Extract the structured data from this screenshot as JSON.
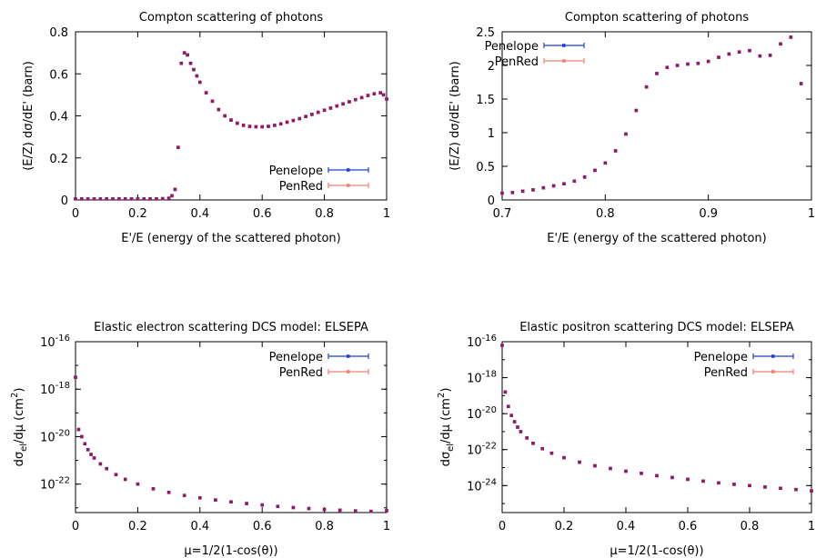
{
  "colors": {
    "penelope": "#1f3fd6",
    "penred": "#f08070",
    "overlap": "#8b1a6b",
    "frame": "#000000"
  },
  "chart_data": [
    {
      "type": "scatter",
      "title": "Compton scattering of photons",
      "xlabel": "E'/E (energy of the scattered photon)",
      "ylabel": "(E/Z) dσ/dE' (barn)",
      "xlim": [
        0,
        1
      ],
      "ylim": [
        0,
        0.8
      ],
      "yscale": "linear",
      "xticks": [
        "0",
        "0.2",
        "0.4",
        "0.6",
        "0.8",
        "1"
      ],
      "yticks": [
        "0",
        "0.2",
        "0.4",
        "0.6",
        "0.8"
      ],
      "legend_position": "bottom-right",
      "series": [
        {
          "name": "Penelope",
          "x": [
            0.0,
            0.02,
            0.04,
            0.06,
            0.08,
            0.1,
            0.12,
            0.14,
            0.16,
            0.18,
            0.2,
            0.22,
            0.24,
            0.26,
            0.28,
            0.3,
            0.31,
            0.32,
            0.33,
            0.34,
            0.35,
            0.36,
            0.37,
            0.38,
            0.39,
            0.4,
            0.42,
            0.44,
            0.46,
            0.48,
            0.5,
            0.52,
            0.54,
            0.56,
            0.58,
            0.6,
            0.62,
            0.64,
            0.66,
            0.68,
            0.7,
            0.72,
            0.74,
            0.76,
            0.78,
            0.8,
            0.82,
            0.84,
            0.86,
            0.88,
            0.9,
            0.92,
            0.94,
            0.96,
            0.98,
            0.99,
            1.0
          ],
          "y": [
            0.005,
            0.005,
            0.005,
            0.005,
            0.005,
            0.005,
            0.005,
            0.005,
            0.005,
            0.005,
            0.005,
            0.005,
            0.005,
            0.005,
            0.006,
            0.008,
            0.02,
            0.05,
            0.25,
            0.65,
            0.7,
            0.69,
            0.65,
            0.62,
            0.59,
            0.56,
            0.51,
            0.47,
            0.43,
            0.4,
            0.38,
            0.365,
            0.355,
            0.35,
            0.348,
            0.348,
            0.35,
            0.355,
            0.362,
            0.37,
            0.378,
            0.387,
            0.397,
            0.407,
            0.417,
            0.427,
            0.437,
            0.447,
            0.457,
            0.467,
            0.477,
            0.487,
            0.497,
            0.505,
            0.51,
            0.5,
            0.48
          ]
        },
        {
          "name": "PenRed",
          "x": [
            0.0,
            0.02,
            0.04,
            0.06,
            0.08,
            0.1,
            0.12,
            0.14,
            0.16,
            0.18,
            0.2,
            0.22,
            0.24,
            0.26,
            0.28,
            0.3,
            0.31,
            0.32,
            0.33,
            0.34,
            0.35,
            0.36,
            0.37,
            0.38,
            0.39,
            0.4,
            0.42,
            0.44,
            0.46,
            0.48,
            0.5,
            0.52,
            0.54,
            0.56,
            0.58,
            0.6,
            0.62,
            0.64,
            0.66,
            0.68,
            0.7,
            0.72,
            0.74,
            0.76,
            0.78,
            0.8,
            0.82,
            0.84,
            0.86,
            0.88,
            0.9,
            0.92,
            0.94,
            0.96,
            0.98,
            0.99,
            1.0
          ],
          "y": [
            0.005,
            0.005,
            0.005,
            0.005,
            0.005,
            0.005,
            0.005,
            0.005,
            0.005,
            0.005,
            0.005,
            0.005,
            0.005,
            0.005,
            0.006,
            0.008,
            0.02,
            0.05,
            0.25,
            0.65,
            0.7,
            0.69,
            0.65,
            0.62,
            0.59,
            0.56,
            0.51,
            0.47,
            0.43,
            0.4,
            0.38,
            0.365,
            0.355,
            0.35,
            0.348,
            0.348,
            0.35,
            0.355,
            0.362,
            0.37,
            0.378,
            0.387,
            0.397,
            0.407,
            0.417,
            0.427,
            0.437,
            0.447,
            0.457,
            0.467,
            0.477,
            0.487,
            0.497,
            0.505,
            0.51,
            0.5,
            0.48
          ]
        }
      ]
    },
    {
      "type": "scatter",
      "title": "Compton scattering of photons",
      "xlabel": "E'/E (energy of the scattered photon)",
      "ylabel": "(E/Z) dσ/dE' (barn)",
      "xlim": [
        0.7,
        1
      ],
      "ylim": [
        0,
        2.5
      ],
      "yscale": "linear",
      "xticks": [
        "0.7",
        "0.8",
        "0.9",
        "1"
      ],
      "yticks": [
        "0",
        "0.5",
        "1",
        "1.5",
        "2",
        "2.5"
      ],
      "legend_position": "top-left",
      "series": [
        {
          "name": "Penelope",
          "x": [
            0.7,
            0.71,
            0.72,
            0.73,
            0.74,
            0.75,
            0.76,
            0.77,
            0.78,
            0.79,
            0.8,
            0.81,
            0.82,
            0.83,
            0.84,
            0.85,
            0.86,
            0.87,
            0.88,
            0.89,
            0.9,
            0.91,
            0.92,
            0.93,
            0.94,
            0.95,
            0.96,
            0.97,
            0.98,
            0.99
          ],
          "y": [
            0.1,
            0.11,
            0.13,
            0.15,
            0.18,
            0.21,
            0.24,
            0.28,
            0.34,
            0.44,
            0.55,
            0.73,
            0.98,
            1.33,
            1.68,
            1.88,
            1.97,
            2.0,
            2.02,
            2.03,
            2.06,
            2.12,
            2.17,
            2.2,
            2.22,
            2.14,
            2.15,
            2.32,
            2.42,
            1.73
          ]
        },
        {
          "name": "PenRed",
          "x": [
            0.7,
            0.71,
            0.72,
            0.73,
            0.74,
            0.75,
            0.76,
            0.77,
            0.78,
            0.79,
            0.8,
            0.81,
            0.82,
            0.83,
            0.84,
            0.85,
            0.86,
            0.87,
            0.88,
            0.89,
            0.9,
            0.91,
            0.92,
            0.93,
            0.94,
            0.95,
            0.96,
            0.97,
            0.98,
            0.99
          ],
          "y": [
            0.1,
            0.11,
            0.13,
            0.15,
            0.18,
            0.21,
            0.24,
            0.28,
            0.34,
            0.44,
            0.55,
            0.73,
            0.98,
            1.33,
            1.68,
            1.88,
            1.97,
            2.0,
            2.02,
            2.03,
            2.06,
            2.12,
            2.17,
            2.2,
            2.22,
            2.14,
            2.15,
            2.32,
            2.42,
            1.73
          ]
        }
      ]
    },
    {
      "type": "scatter",
      "title": "Elastic electron scattering DCS model: ELSEPA",
      "xlabel": "μ=1/2(1-cos(θ))",
      "ylabel": "dσel/dμ (cm2)",
      "xlim": [
        0,
        1
      ],
      "ylim_log10": [
        -23.2,
        -16
      ],
      "yscale": "log",
      "xticks": [
        "0",
        "0.2",
        "0.4",
        "0.6",
        "0.8",
        "1"
      ],
      "yticks_exponents": [
        "-16",
        "-18",
        "-20",
        "-22"
      ],
      "legend_position": "top-right",
      "series": [
        {
          "name": "Penelope",
          "x": [
            0.0,
            0.01,
            0.02,
            0.03,
            0.04,
            0.05,
            0.06,
            0.08,
            0.1,
            0.13,
            0.16,
            0.2,
            0.25,
            0.3,
            0.35,
            0.4,
            0.45,
            0.5,
            0.55,
            0.6,
            0.65,
            0.7,
            0.75,
            0.8,
            0.85,
            0.9,
            0.95,
            1.0
          ],
          "log10_y": [
            -17.5,
            -19.7,
            -20.0,
            -20.3,
            -20.55,
            -20.75,
            -20.9,
            -21.15,
            -21.35,
            -21.6,
            -21.8,
            -22.0,
            -22.2,
            -22.35,
            -22.48,
            -22.58,
            -22.67,
            -22.75,
            -22.82,
            -22.88,
            -22.94,
            -22.99,
            -23.03,
            -23.07,
            -23.1,
            -23.13,
            -23.15,
            -23.12
          ]
        },
        {
          "name": "PenRed",
          "x": [
            0.0,
            0.01,
            0.02,
            0.03,
            0.04,
            0.05,
            0.06,
            0.08,
            0.1,
            0.13,
            0.16,
            0.2,
            0.25,
            0.3,
            0.35,
            0.4,
            0.45,
            0.5,
            0.55,
            0.6,
            0.65,
            0.7,
            0.75,
            0.8,
            0.85,
            0.9,
            0.95,
            1.0
          ],
          "log10_y": [
            -17.5,
            -19.7,
            -20.0,
            -20.3,
            -20.55,
            -20.75,
            -20.9,
            -21.15,
            -21.35,
            -21.6,
            -21.8,
            -22.0,
            -22.2,
            -22.35,
            -22.48,
            -22.58,
            -22.67,
            -22.75,
            -22.82,
            -22.88,
            -22.94,
            -22.99,
            -23.03,
            -23.07,
            -23.1,
            -23.13,
            -23.15,
            -23.12
          ]
        }
      ]
    },
    {
      "type": "scatter",
      "title": "Elastic positron scattering DCS model: ELSEPA",
      "xlabel": "μ=1/2(1-cos(θ))",
      "ylabel": "dσel/dμ (cm2)",
      "xlim": [
        0,
        1
      ],
      "ylim_log10": [
        -25.5,
        -16
      ],
      "yscale": "log",
      "xticks": [
        "0",
        "0.2",
        "0.4",
        "0.6",
        "0.8",
        "1"
      ],
      "yticks_exponents": [
        "-16",
        "-18",
        "-20",
        "-22",
        "-24"
      ],
      "legend_position": "top-right",
      "series": [
        {
          "name": "Penelope",
          "x": [
            0.0,
            0.01,
            0.02,
            0.03,
            0.04,
            0.05,
            0.06,
            0.08,
            0.1,
            0.13,
            0.16,
            0.2,
            0.25,
            0.3,
            0.35,
            0.4,
            0.45,
            0.5,
            0.55,
            0.6,
            0.65,
            0.7,
            0.75,
            0.8,
            0.85,
            0.9,
            0.95,
            1.0
          ],
          "log10_y": [
            -16.2,
            -18.8,
            -19.6,
            -20.1,
            -20.45,
            -20.75,
            -21.0,
            -21.35,
            -21.65,
            -21.95,
            -22.2,
            -22.45,
            -22.7,
            -22.9,
            -23.05,
            -23.2,
            -23.32,
            -23.45,
            -23.55,
            -23.65,
            -23.75,
            -23.85,
            -23.93,
            -24.0,
            -24.08,
            -24.15,
            -24.22,
            -24.3
          ]
        },
        {
          "name": "PenRed",
          "x": [
            0.0,
            0.01,
            0.02,
            0.03,
            0.04,
            0.05,
            0.06,
            0.08,
            0.1,
            0.13,
            0.16,
            0.2,
            0.25,
            0.3,
            0.35,
            0.4,
            0.45,
            0.5,
            0.55,
            0.6,
            0.65,
            0.7,
            0.75,
            0.8,
            0.85,
            0.9,
            0.95,
            1.0
          ],
          "log10_y": [
            -16.2,
            -18.8,
            -19.6,
            -20.1,
            -20.45,
            -20.75,
            -21.0,
            -21.35,
            -21.65,
            -21.95,
            -22.2,
            -22.45,
            -22.7,
            -22.9,
            -23.05,
            -23.2,
            -23.32,
            -23.45,
            -23.55,
            -23.65,
            -23.75,
            -23.85,
            -23.93,
            -24.0,
            -24.08,
            -24.15,
            -24.22,
            -24.3
          ]
        }
      ]
    }
  ],
  "ylabel_parts": {
    "base": "dσ",
    "sub": "el",
    "mid": "/dμ (cm",
    "sup": "2",
    "end": ")"
  },
  "tick_base": "10"
}
